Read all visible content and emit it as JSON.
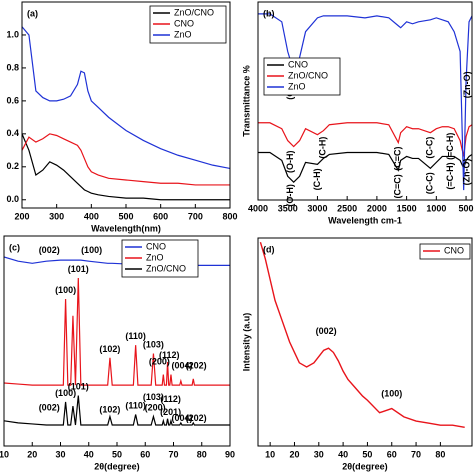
{
  "chart_data": [
    {
      "type": "line",
      "label": "(a)",
      "xlabel": "Wavelength(nm)",
      "x": [
        200,
        220,
        240,
        260,
        280,
        300,
        320,
        340,
        360,
        370,
        380,
        390,
        400,
        420,
        450,
        500,
        550,
        600,
        650,
        700,
        750,
        800
      ],
      "series": [
        {
          "name": "ZnO/CNO",
          "color": "#000000",
          "values": [
            0.4,
            0.3,
            0.15,
            0.18,
            0.23,
            0.21,
            0.18,
            0.14,
            0.1,
            0.08,
            0.06,
            0.05,
            0.04,
            0.03,
            0.02,
            0.01,
            0.01,
            0.0,
            0.0,
            0.0,
            0.0,
            0.0
          ]
        },
        {
          "name": "CNO",
          "color": "#e8141b",
          "values": [
            0.3,
            0.38,
            0.35,
            0.37,
            0.4,
            0.39,
            0.37,
            0.35,
            0.33,
            0.3,
            0.25,
            0.2,
            0.17,
            0.15,
            0.13,
            0.12,
            0.11,
            0.1,
            0.1,
            0.09,
            0.09,
            0.09
          ]
        },
        {
          "name": "ZnO",
          "color": "#1f32d6",
          "values": [
            1.05,
            1.0,
            0.66,
            0.62,
            0.6,
            0.6,
            0.61,
            0.63,
            0.7,
            0.78,
            0.77,
            0.66,
            0.6,
            0.56,
            0.5,
            0.42,
            0.36,
            0.31,
            0.27,
            0.24,
            0.21,
            0.19
          ]
        }
      ],
      "xlim": [
        200,
        800
      ],
      "xticks": [
        200,
        300,
        400,
        500,
        600,
        700,
        800
      ],
      "ylim": [
        -0.05,
        1.2
      ],
      "yticks": [
        {
          "value": 0,
          "label": "0.0"
        },
        0.2,
        0.4,
        0.6,
        0.8,
        {
          "value": 1,
          "label": "1.0"
        }
      ]
    },
    {
      "type": "line",
      "label": "(b)",
      "xlabel": "Wavelength cm-1",
      "ylabel": "Transmittance %",
      "x": [
        4000,
        3800,
        3600,
        3500,
        3400,
        3300,
        3200,
        3000,
        2900,
        2800,
        2500,
        2200,
        2000,
        1800,
        1640,
        1600,
        1500,
        1400,
        1300,
        1100,
        1000,
        900,
        800,
        700,
        600,
        540,
        500,
        450,
        400
      ],
      "series": [
        {
          "name": "CNO",
          "color": "#000000",
          "values": [
            2.4,
            2.4,
            2.0,
            1.2,
            0.9,
            1.2,
            1.9,
            1.8,
            2.1,
            2.3,
            2.4,
            2.4,
            2.4,
            2.3,
            1.5,
            2.0,
            2.2,
            2.1,
            2.1,
            1.6,
            1.9,
            2.2,
            2.2,
            2.2,
            2.0,
            1.6,
            2.0,
            2.2,
            2.3
          ]
        },
        {
          "name": "ZnO/CNO",
          "color": "#e8141b",
          "values": [
            3.9,
            3.9,
            3.6,
            3.0,
            2.7,
            3.0,
            3.6,
            3.3,
            3.5,
            3.8,
            3.9,
            3.9,
            3.9,
            3.8,
            2.9,
            3.4,
            3.7,
            3.6,
            3.6,
            3.4,
            3.6,
            3.7,
            3.7,
            3.6,
            3.0,
            2.2,
            3.2,
            3.7,
            3.8
          ]
        },
        {
          "name": "ZnO",
          "color": "#1f32d6",
          "values": [
            9.4,
            9.4,
            9.0,
            7.5,
            6.5,
            7.2,
            8.5,
            9.2,
            9.3,
            9.3,
            9.3,
            9.2,
            9.3,
            9.2,
            8.8,
            8.7,
            9.0,
            8.9,
            9.0,
            9.1,
            9.2,
            9.1,
            9.0,
            8.5,
            7.5,
            0.5,
            6,
            9,
            9.3
          ]
        }
      ],
      "xlim": [
        4000,
        400
      ],
      "xticks": [
        4000,
        3500,
        3000,
        2500,
        2000,
        1500,
        1000,
        500
      ],
      "ylim": [
        0,
        10
      ],
      "annotations": [
        {
          "text": "(O-H)",
          "x": 3450,
          "y": 6.2
        },
        {
          "text": "(Zn-O)",
          "x": 470,
          "y": 6.5
        },
        {
          "text": "(O-H)",
          "x": 3450,
          "y": 2.5
        },
        {
          "text": "(C-H)",
          "x": 2900,
          "y": 3.2
        },
        {
          "text": "(C=C)",
          "x": 1640,
          "y": 2.7
        },
        {
          "text": "(C-C)",
          "x": 1100,
          "y": 3.2
        },
        {
          "text": "(=C-H)",
          "x": 760,
          "y": 3.4
        },
        {
          "text": "(Zn-O)",
          "x": 480,
          "y": 2.1
        },
        {
          "text": "(O-H)",
          "x": 3450,
          "y": 0.8
        },
        {
          "text": "(C-H)",
          "x": 3000,
          "y": 1.6
        },
        {
          "text": "(C=C)",
          "x": 1640,
          "y": 1.3
        },
        {
          "text": "(C-C)",
          "x": 1100,
          "y": 1.4
        },
        {
          "text": "(=C-H)",
          "x": 760,
          "y": 1.9
        }
      ]
    },
    {
      "type": "line",
      "label": "(c)",
      "xlabel": "2θ(degree)",
      "x": [
        10,
        15,
        20,
        25,
        30,
        31,
        31.8,
        32.6,
        33.6,
        34.4,
        35.3,
        36.3,
        37.2,
        40,
        46.7,
        47.5,
        48.3,
        55.8,
        56.6,
        57.4,
        62.1,
        62.9,
        63.7,
        66,
        66.4,
        66.8,
        67.5,
        67.9,
        68.3,
        68.7,
        69.1,
        69.5,
        72.2,
        72.6,
        73,
        76.6,
        77,
        77.4,
        80,
        85,
        90
      ],
      "series": [
        {
          "name": "CNO",
          "color": "#1f32d6",
          "values": [
            90,
            88,
            87,
            88,
            88.5,
            88.5,
            88.5,
            88.5,
            88.5,
            88.5,
            88.5,
            88.5,
            88.5,
            88,
            87,
            87,
            87,
            86.5,
            86.5,
            86.5,
            86,
            86,
            86,
            86,
            86,
            86,
            86,
            86,
            86,
            86,
            86,
            86,
            86,
            86,
            86,
            86,
            86,
            86,
            86,
            86,
            86
          ]
        },
        {
          "name": "ZnO",
          "color": "#e8141b",
          "values": [
            30,
            29.5,
            29,
            29,
            29,
            29,
            70,
            29,
            29,
            62,
            29,
            80,
            29,
            29,
            29,
            42,
            29,
            29,
            48,
            29,
            29,
            44,
            29,
            29,
            34,
            29,
            29,
            40,
            29,
            29,
            34,
            29,
            29,
            31,
            29,
            29,
            32,
            29,
            29,
            29,
            29
          ]
        },
        {
          "name": "ZnO/CNO",
          "color": "#000000",
          "values": [
            12,
            11,
            10.5,
            10,
            10,
            10,
            21,
            10,
            10,
            19,
            10,
            24,
            10,
            10,
            10,
            14,
            10,
            10,
            15,
            10,
            10,
            14,
            10,
            10,
            12,
            10,
            10,
            13,
            10,
            10,
            12,
            10,
            10,
            11,
            10,
            10,
            11,
            10,
            10,
            10,
            10
          ]
        }
      ],
      "xlim": [
        10,
        90
      ],
      "xticks": [
        10,
        20,
        30,
        40,
        50,
        60,
        70,
        80,
        90
      ],
      "ylim": [
        0,
        100
      ],
      "annotations": [
        {
          "text": "(002)",
          "x": 26,
          "y": 93
        },
        {
          "text": "(100)",
          "x": 41,
          "y": 93
        },
        {
          "text": "(100)",
          "x": 31.8,
          "y": 74
        },
        {
          "text": "(101)",
          "x": 36.3,
          "y": 84
        },
        {
          "text": "(102)",
          "x": 47.5,
          "y": 46
        },
        {
          "text": "(110)",
          "x": 56.6,
          "y": 52
        },
        {
          "text": "(103)",
          "x": 62.9,
          "y": 48
        },
        {
          "text": "(200)",
          "x": 65,
          "y": 40
        },
        {
          "text": "(112)",
          "x": 68.5,
          "y": 43
        },
        {
          "text": "(004)",
          "x": 73,
          "y": 38
        },
        {
          "text": "(202)",
          "x": 78,
          "y": 38
        },
        {
          "text": "(002)",
          "x": 26,
          "y": 18
        },
        {
          "text": "(100)",
          "x": 31.8,
          "y": 25
        },
        {
          "text": "(101)",
          "x": 36.3,
          "y": 28
        },
        {
          "text": "(102)",
          "x": 47.5,
          "y": 17
        },
        {
          "text": "(110)",
          "x": 56.6,
          "y": 19
        },
        {
          "text": "(103)",
          "x": 62.9,
          "y": 23
        },
        {
          "text": "(200)",
          "x": 63.5,
          "y": 18
        },
        {
          "text": "(112)",
          "x": 69,
          "y": 22
        },
        {
          "text": "(201)",
          "x": 69,
          "y": 16
        },
        {
          "text": "(004)",
          "x": 73,
          "y": 13
        },
        {
          "text": "(202)",
          "x": 78,
          "y": 13
        }
      ]
    },
    {
      "type": "line",
      "label": "(d)",
      "xlabel": "2θ(degree)",
      "ylabel": "Intensity (a.u)",
      "x": [
        6,
        8,
        10,
        12,
        15,
        18,
        20,
        22,
        25,
        28,
        30,
        32,
        34,
        36,
        38,
        40,
        42,
        45,
        48,
        50,
        55,
        60,
        65,
        70,
        75,
        80,
        85,
        90
      ],
      "series": [
        {
          "name": "CNO",
          "color": "#e8141b",
          "values": [
            98,
            90,
            80,
            70,
            60,
            50,
            45,
            40,
            38,
            40,
            43,
            46,
            47,
            45,
            41,
            36,
            32,
            28,
            24,
            22,
            16,
            18,
            14,
            12,
            11,
            10,
            10,
            9
          ]
        }
      ],
      "xlim": [
        5,
        93
      ],
      "xticks": [
        10,
        20,
        30,
        40,
        50,
        60,
        70,
        80
      ],
      "ylim": [
        0,
        100
      ],
      "annotations": [
        {
          "text": "(002)",
          "x": 33,
          "y": 55
        },
        {
          "text": "(100)",
          "x": 60,
          "y": 25
        }
      ]
    }
  ]
}
